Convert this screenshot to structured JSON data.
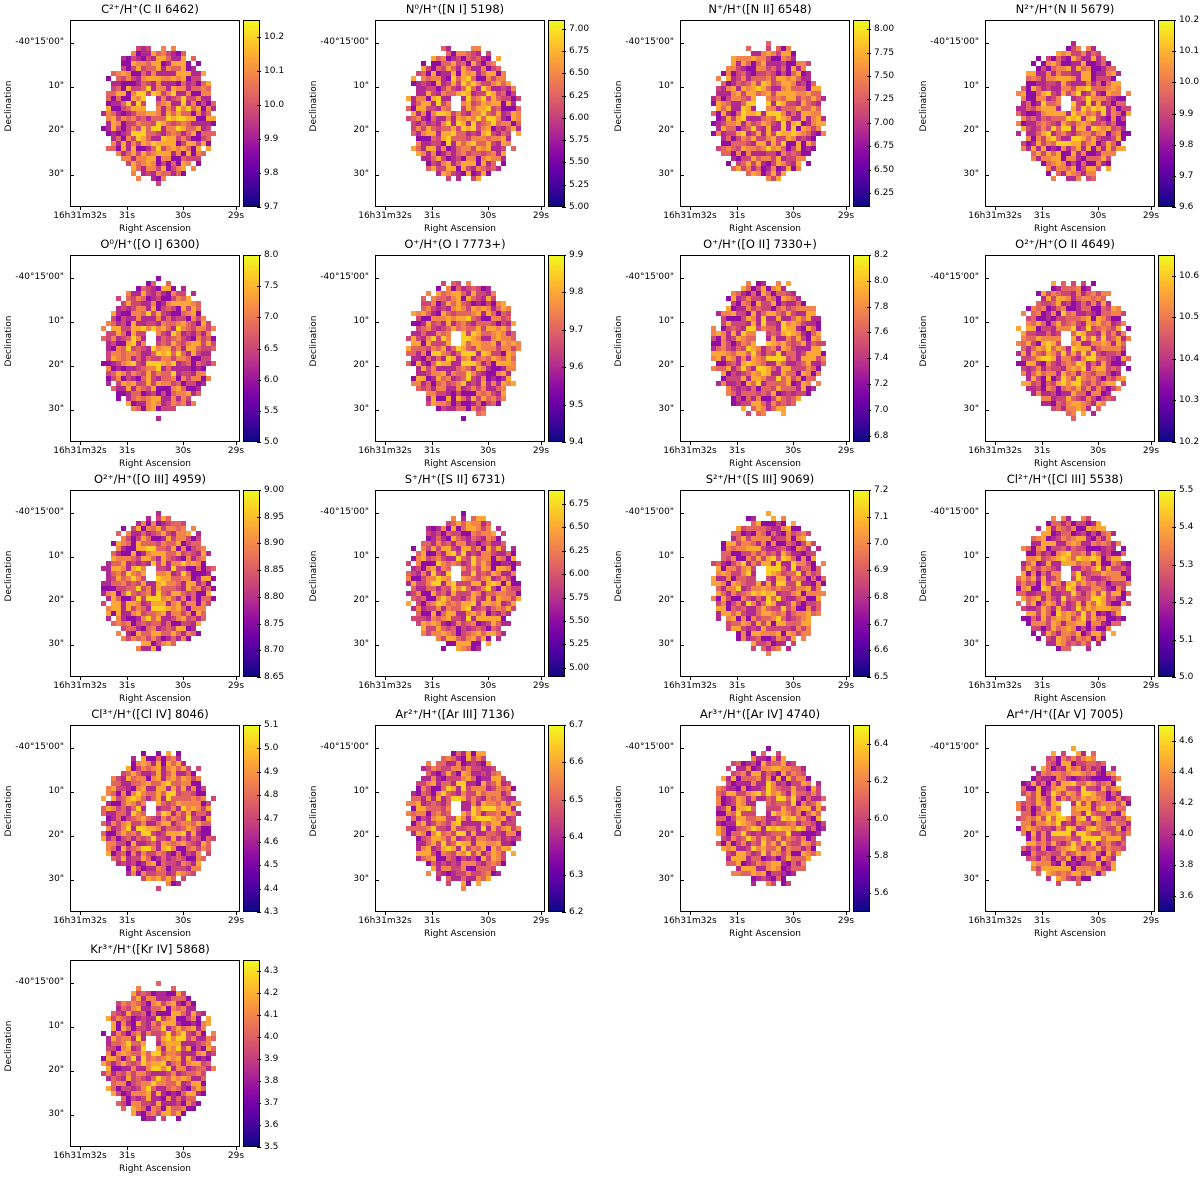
{
  "figure": {
    "xlabel": "Right Ascension",
    "ylabel": "Declination",
    "xticks": [
      "16h31m32s",
      "31s",
      "30s",
      "29s"
    ],
    "yticks": [
      "-40°15'00\"",
      "10\"",
      "20\"",
      "30\""
    ]
  },
  "chart_data": [
    {
      "type": "heatmap",
      "title": "C²⁺/H⁺(C II 6462)",
      "colorbar": {
        "range": [
          9.7,
          10.25
        ],
        "ticks": [
          "9.7",
          "9.8",
          "9.9",
          "10.0",
          "10.1",
          "10.2"
        ]
      }
    },
    {
      "type": "heatmap",
      "title": "N⁰/H⁺([N I] 5198)",
      "colorbar": {
        "range": [
          5.0,
          7.1
        ],
        "ticks": [
          "5.00",
          "5.25",
          "5.50",
          "5.75",
          "6.00",
          "6.25",
          "6.50",
          "6.75",
          "7.00"
        ]
      }
    },
    {
      "type": "heatmap",
      "title": "N⁺/H⁺([N II] 6548)",
      "colorbar": {
        "range": [
          6.1,
          8.1
        ],
        "ticks": [
          "6.25",
          "6.50",
          "6.75",
          "7.00",
          "7.25",
          "7.50",
          "7.75",
          "8.00"
        ]
      }
    },
    {
      "type": "heatmap",
      "title": "N²⁺/H⁺(N II 5679)",
      "colorbar": {
        "range": [
          9.6,
          10.2
        ],
        "ticks": [
          "9.6",
          "9.7",
          "9.8",
          "9.9",
          "10.0",
          "10.1",
          "10.2"
        ]
      }
    },
    {
      "type": "heatmap",
      "title": "O⁰/H⁺([O I] 6300)",
      "colorbar": {
        "range": [
          5.0,
          8.0
        ],
        "ticks": [
          "5.0",
          "5.5",
          "6.0",
          "6.5",
          "7.0",
          "7.5",
          "8.0"
        ]
      }
    },
    {
      "type": "heatmap",
      "title": "O⁺/H⁺(O I 7773+)",
      "colorbar": {
        "range": [
          9.4,
          9.9
        ],
        "ticks": [
          "9.4",
          "9.5",
          "9.6",
          "9.7",
          "9.8",
          "9.9"
        ]
      }
    },
    {
      "type": "heatmap",
      "title": "O⁺/H⁺([O II] 7330+)",
      "colorbar": {
        "range": [
          6.75,
          8.2
        ],
        "ticks": [
          "6.8",
          "7.0",
          "7.2",
          "7.4",
          "7.6",
          "7.8",
          "8.0",
          "8.2"
        ]
      }
    },
    {
      "type": "heatmap",
      "title": "O²⁺/H⁺(O II 4649)",
      "colorbar": {
        "range": [
          10.2,
          10.65
        ],
        "ticks": [
          "10.2",
          "10.3",
          "10.4",
          "10.5",
          "10.6"
        ]
      }
    },
    {
      "type": "heatmap",
      "title": "O²⁺/H⁺([O III] 4959)",
      "colorbar": {
        "range": [
          8.65,
          9.0
        ],
        "ticks": [
          "8.65",
          "8.70",
          "8.75",
          "8.80",
          "8.85",
          "8.90",
          "8.95",
          "9.00"
        ]
      }
    },
    {
      "type": "heatmap",
      "title": "S⁺/H⁺([S II] 6731)",
      "colorbar": {
        "range": [
          4.9,
          6.9
        ],
        "ticks": [
          "5.00",
          "5.25",
          "5.50",
          "5.75",
          "6.00",
          "6.25",
          "6.50",
          "6.75"
        ]
      }
    },
    {
      "type": "heatmap",
      "title": "S²⁺/H⁺([S III] 9069)",
      "colorbar": {
        "range": [
          6.5,
          7.2
        ],
        "ticks": [
          "6.5",
          "6.6",
          "6.7",
          "6.8",
          "6.9",
          "7.0",
          "7.1",
          "7.2"
        ]
      }
    },
    {
      "type": "heatmap",
      "title": "Cl²⁺/H⁺([Cl III] 5538)",
      "colorbar": {
        "range": [
          5.0,
          5.5
        ],
        "ticks": [
          "5.0",
          "5.1",
          "5.2",
          "5.3",
          "5.4",
          "5.5"
        ]
      }
    },
    {
      "type": "heatmap",
      "title": "Cl³⁺/H⁺([Cl IV] 8046)",
      "colorbar": {
        "range": [
          4.3,
          5.1
        ],
        "ticks": [
          "4.3",
          "4.4",
          "4.5",
          "4.6",
          "4.7",
          "4.8",
          "4.9",
          "5.0",
          "5.1"
        ]
      }
    },
    {
      "type": "heatmap",
      "title": "Ar²⁺/H⁺([Ar III] 7136)",
      "colorbar": {
        "range": [
          6.2,
          6.7
        ],
        "ticks": [
          "6.2",
          "6.3",
          "6.4",
          "6.5",
          "6.6",
          "6.7"
        ]
      }
    },
    {
      "type": "heatmap",
      "title": "Ar³⁺/H⁺([Ar IV] 4740)",
      "colorbar": {
        "range": [
          5.5,
          6.5
        ],
        "ticks": [
          "5.6",
          "5.8",
          "6.0",
          "6.2",
          "6.4"
        ]
      }
    },
    {
      "type": "heatmap",
      "title": "Ar⁴⁺/H⁺([Ar V] 7005)",
      "colorbar": {
        "range": [
          3.5,
          4.7
        ],
        "ticks": [
          "3.6",
          "3.8",
          "4.0",
          "4.2",
          "4.4",
          "4.6"
        ]
      }
    },
    {
      "type": "heatmap",
      "title": "Kr³⁺/H⁺([Kr IV] 5868)",
      "colorbar": {
        "range": [
          3.5,
          4.35
        ],
        "ticks": [
          "3.5",
          "3.6",
          "3.7",
          "3.8",
          "3.9",
          "4.0",
          "4.1",
          "4.2",
          "4.3"
        ]
      }
    }
  ]
}
